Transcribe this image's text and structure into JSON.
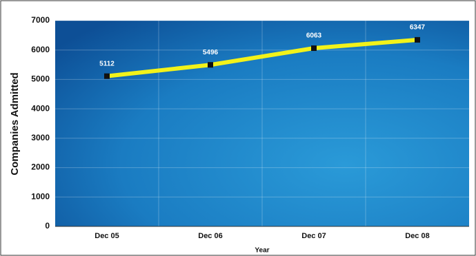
{
  "chart_data": {
    "type": "line",
    "x_label": "Year",
    "y_label": "Companies Admitted",
    "categories": [
      "Dec 05",
      "Dec 06",
      "Dec 07",
      "Dec 08"
    ],
    "values": [
      5112,
      5496,
      6063,
      6347
    ],
    "color": "#f2f21a",
    "ylim": [
      0,
      7000
    ],
    "yticks": [
      0,
      1000,
      2000,
      3000,
      4000,
      5000,
      6000,
      7000
    ],
    "grid": true
  }
}
